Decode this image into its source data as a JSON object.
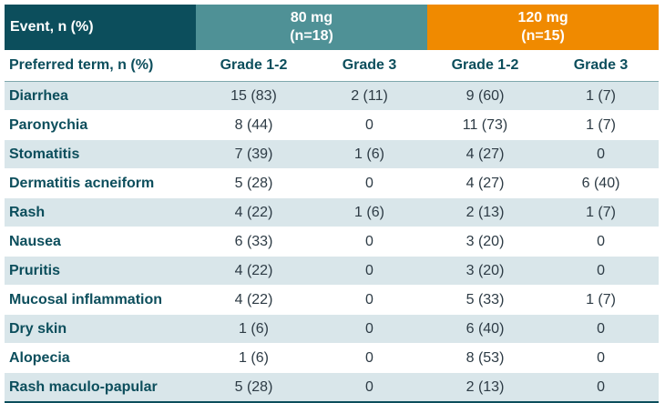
{
  "header": {
    "event_label": "Event, n (%)",
    "group80": {
      "dose": "80 mg",
      "n": "(n=18)"
    },
    "group120": {
      "dose": "120 mg",
      "n": "(n=15)"
    }
  },
  "subheader": [
    "Preferred term, n (%)",
    "Grade 1-2",
    "Grade 3",
    "Grade 1-2",
    "Grade 3"
  ],
  "colors": {
    "event_header": "#0c4e5c",
    "dose80": "#4f9196",
    "dose120": "#f08a00",
    "stripe": "#d9e6ea"
  },
  "rows": [
    {
      "term": "Diarrhea",
      "g12_80": "15 (83)",
      "g3_80": "2 (11)",
      "g12_120": "9 (60)",
      "g3_120": "1 (7)"
    },
    {
      "term": "Paronychia",
      "g12_80": "8 (44)",
      "g3_80": "0",
      "g12_120": "11 (73)",
      "g3_120": "1 (7)"
    },
    {
      "term": "Stomatitis",
      "g12_80": "7 (39)",
      "g3_80": "1 (6)",
      "g12_120": "4 (27)",
      "g3_120": "0"
    },
    {
      "term": "Dermatitis acneiform",
      "g12_80": "5 (28)",
      "g3_80": "0",
      "g12_120": "4 (27)",
      "g3_120": "6 (40)"
    },
    {
      "term": "Rash",
      "g12_80": "4 (22)",
      "g3_80": "1 (6)",
      "g12_120": "2 (13)",
      "g3_120": "1 (7)"
    },
    {
      "term": "Nausea",
      "g12_80": "6 (33)",
      "g3_80": "0",
      "g12_120": "3 (20)",
      "g3_120": "0"
    },
    {
      "term": "Pruritis",
      "g12_80": "4 (22)",
      "g3_80": "0",
      "g12_120": "3 (20)",
      "g3_120": "0"
    },
    {
      "term": "Mucosal inflammation",
      "g12_80": "4 (22)",
      "g3_80": "0",
      "g12_120": "5 (33)",
      "g3_120": "1 (7)"
    },
    {
      "term": "Dry skin",
      "g12_80": "1 (6)",
      "g3_80": "0",
      "g12_120": "6 (40)",
      "g3_120": "0"
    },
    {
      "term": "Alopecia",
      "g12_80": "1 (6)",
      "g3_80": "0",
      "g12_120": "8 (53)",
      "g3_120": "0"
    },
    {
      "term": "Rash maculo-papular",
      "g12_80": "5 (28)",
      "g3_80": "0",
      "g12_120": "2 (13)",
      "g3_120": "0"
    }
  ]
}
